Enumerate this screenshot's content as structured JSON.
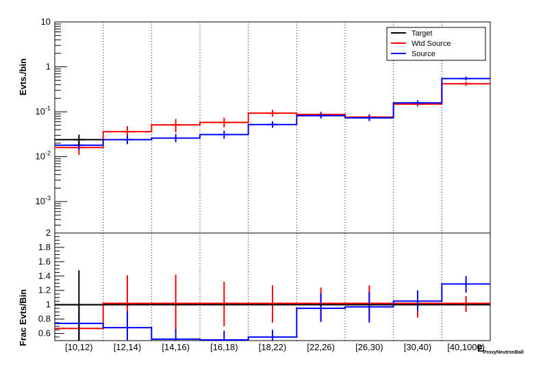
{
  "chart_data": [
    {
      "type": "step",
      "ylabel": "Evts./bin",
      "yscale": "log",
      "ylim": [
        0.0002,
        10
      ],
      "yticks": [
        {
          "value": 0.001,
          "base": "10",
          "exp": "-3"
        },
        {
          "value": 0.01,
          "base": "10",
          "exp": "-2"
        },
        {
          "value": 0.1,
          "base": "10",
          "exp": "-1"
        },
        {
          "value": 1,
          "base": "1",
          "exp": ""
        },
        {
          "value": 10,
          "base": "10",
          "exp": ""
        }
      ],
      "legend": {
        "position": "top-right",
        "entries": [
          "Target",
          "Wtd Source",
          "Source"
        ]
      },
      "series": [
        {
          "name": "Target",
          "color": "#000000",
          "values": [
            0.024
          ],
          "errors": [
            [
              0.017,
              0.031
            ]
          ]
        },
        {
          "name": "Wtd Source",
          "color": "#ff0000",
          "values": [
            0.016,
            0.036,
            0.051,
            0.058,
            0.093,
            0.087,
            0.076,
            0.148,
            0.42
          ],
          "errors": [
            [
              0.011,
              0.022
            ],
            [
              0.027,
              0.048
            ],
            [
              0.035,
              0.069
            ],
            [
              0.045,
              0.074
            ],
            [
              0.078,
              0.111
            ],
            [
              0.075,
              0.1
            ],
            [
              0.066,
              0.088
            ],
            [
              0.13,
              0.168
            ],
            [
              0.38,
              0.47
            ]
          ]
        },
        {
          "name": "Source",
          "color": "#0000ff",
          "values": [
            0.018,
            0.024,
            0.026,
            0.031,
            0.052,
            0.082,
            0.073,
            0.158,
            0.55
          ],
          "errors": [
            [
              0.014,
              0.023
            ],
            [
              0.019,
              0.03
            ],
            [
              0.021,
              0.032
            ],
            [
              0.025,
              0.038
            ],
            [
              0.044,
              0.061
            ],
            [
              0.071,
              0.094
            ],
            [
              0.062,
              0.085
            ],
            [
              0.14,
              0.18
            ],
            [
              0.5,
              0.61
            ]
          ]
        }
      ]
    },
    {
      "type": "step",
      "ylabel": "Frac Evts/Bin",
      "ylim": [
        0.5,
        2.0
      ],
      "yticks": [
        "0.6",
        "0.8",
        "1",
        "1.2",
        "1.4",
        "1.6",
        "1.8",
        "2"
      ],
      "categories": [
        "[10,12)",
        "[12,14)",
        "[14,16)",
        "[16,18)",
        "[18,22)",
        "[22,26)",
        "[26,30)",
        "[30,40)",
        "[40,1000)"
      ],
      "xlabel": "E",
      "xlabel_sub": "ProxyNeutronBall",
      "series": [
        {
          "name": "Target",
          "color": "#000000",
          "values": [
            1.0,
            1.0,
            1.0,
            1.0,
            1.0,
            1.0,
            1.0,
            1.0,
            1.0
          ],
          "errors": [
            [
              0.5,
              1.48
            ]
          ]
        },
        {
          "name": "Wtd Source",
          "color": "#ff0000",
          "values": [
            0.67,
            1.02,
            1.02,
            1.02,
            1.02,
            1.02,
            1.02,
            1.02,
            1.02
          ],
          "errors": [
            [
              0.5,
              0.84
            ],
            [
              0.62,
              1.41
            ],
            [
              0.62,
              1.42
            ],
            [
              0.7,
              1.32
            ],
            [
              0.75,
              1.27
            ],
            [
              0.8,
              1.24
            ],
            [
              0.8,
              1.27
            ],
            [
              0.82,
              1.16
            ],
            [
              0.9,
              1.12
            ]
          ]
        },
        {
          "name": "Source",
          "color": "#0000ff",
          "values": [
            0.74,
            0.68,
            0.52,
            0.51,
            0.55,
            0.95,
            0.97,
            1.05,
            1.29
          ],
          "errors": [
            [
              0.5,
              0.98
            ],
            [
              0.5,
              0.91
            ],
            [
              0.5,
              0.66
            ],
            [
              0.5,
              0.64
            ],
            [
              0.5,
              0.65
            ],
            [
              0.76,
              1.16
            ],
            [
              0.75,
              1.18
            ],
            [
              0.91,
              1.2
            ],
            [
              1.17,
              1.4
            ]
          ]
        }
      ]
    }
  ]
}
